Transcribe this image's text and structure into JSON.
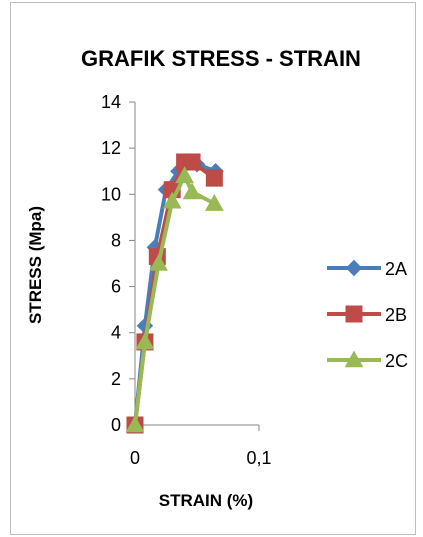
{
  "chart_data": {
    "type": "line",
    "title": "GRAFIK STRESS - STRAIN",
    "xlabel": "STRAIN (%)",
    "ylabel": "STRESS (Mpa)",
    "xlim": [
      0,
      0.1
    ],
    "ylim": [
      0,
      14
    ],
    "x_ticks": [
      0,
      0.1
    ],
    "x_tick_labels": [
      "0",
      "0,1"
    ],
    "y_ticks": [
      0,
      2,
      4,
      6,
      8,
      10,
      12,
      14
    ],
    "y_tick_labels": [
      "0",
      "2",
      "4",
      "6",
      "8",
      "10",
      "12",
      "14"
    ],
    "grid": false,
    "legend_position": "right",
    "series": [
      {
        "name": "2A",
        "color": "#4a7ebb",
        "marker": "diamond",
        "points": [
          [
            0,
            0
          ],
          [
            0.008,
            4.3
          ],
          [
            0.016,
            7.7
          ],
          [
            0.025,
            10.2
          ],
          [
            0.035,
            11.0
          ],
          [
            0.05,
            11.3
          ],
          [
            0.065,
            11.0
          ]
        ]
      },
      {
        "name": "2B",
        "color": "#be4b48",
        "marker": "square",
        "points": [
          [
            0,
            0
          ],
          [
            0.008,
            3.6
          ],
          [
            0.018,
            7.3
          ],
          [
            0.03,
            10.2
          ],
          [
            0.04,
            11.4
          ],
          [
            0.046,
            11.4
          ],
          [
            0.064,
            10.7
          ]
        ]
      },
      {
        "name": "2C",
        "color": "#98b954",
        "marker": "triangle",
        "points": [
          [
            0,
            0
          ],
          [
            0.008,
            3.6
          ],
          [
            0.019,
            7.0
          ],
          [
            0.03,
            9.7
          ],
          [
            0.04,
            10.8
          ],
          [
            0.046,
            10.1
          ],
          [
            0.064,
            9.6
          ]
        ]
      }
    ]
  }
}
